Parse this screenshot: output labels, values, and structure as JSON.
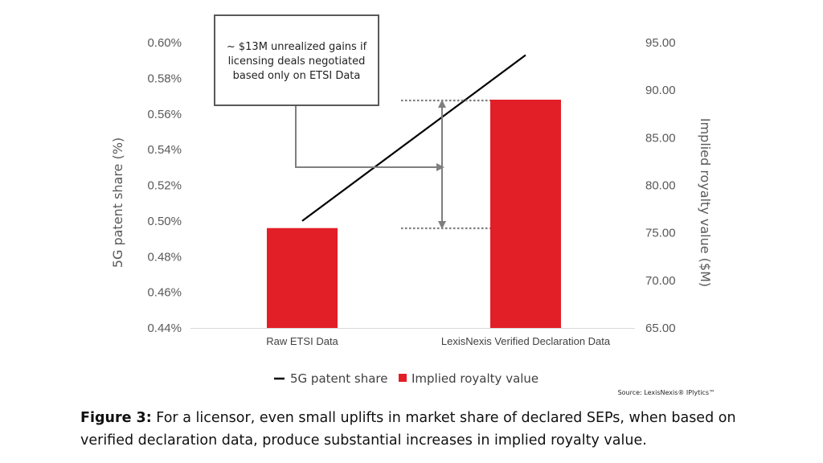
{
  "chart_data": {
    "type": "bar+line",
    "categories": [
      "Raw ETSI Data",
      "LexisNexis Verified Declaration Data"
    ],
    "bars": {
      "name": "Implied royalty value",
      "color": "#e21f26",
      "axis": "right",
      "values": [
        75.5,
        89.0
      ]
    },
    "line": {
      "name": "5G patent share",
      "color": "#000000",
      "axis": "left",
      "values": [
        0.5,
        0.593
      ]
    },
    "left_axis": {
      "label": "5G patent share (%)",
      "ticks": [
        "0.60%",
        "0.58%",
        "0.56%",
        "0.54%",
        "0.52%",
        "0.50%",
        "0.48%",
        "0.46%",
        "0.44%"
      ],
      "min": 0.44,
      "max": 0.6
    },
    "right_axis": {
      "label": "Implied royalty value ($M)",
      "ticks": [
        "95.00",
        "90.00",
        "85.00",
        "80.00",
        "75.00",
        "70.00",
        "65.00"
      ],
      "min": 65,
      "max": 95
    },
    "annotation": [
      "~ $13M unrealized gains if",
      "licensing deals negotiated",
      "based only on ETSI Data"
    ],
    "legend": {
      "line_label": "5G patent share",
      "bar_label": "Implied royalty value",
      "position": "bottom"
    },
    "source": "Source: LexisNexis® IPlytics™"
  },
  "caption": {
    "label": "Figure 3:",
    "text": " For a licensor, even small uplifts in market share of declared SEPs, when based on verified declaration data, produce substantial increases in implied royalty value."
  }
}
